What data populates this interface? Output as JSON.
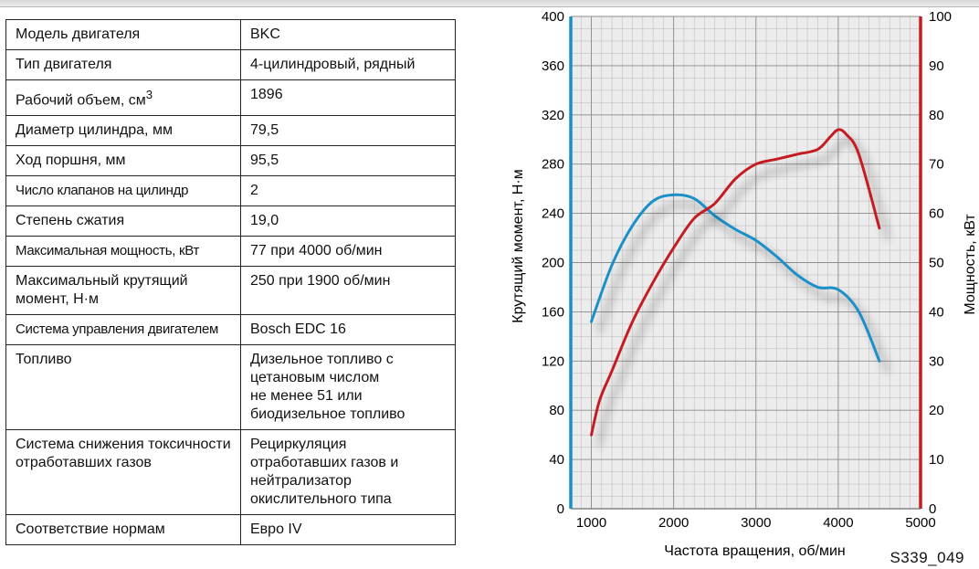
{
  "specs": {
    "rows": [
      {
        "label": "Модель двигателя",
        "value": "BKC"
      },
      {
        "label": "Тип двигателя",
        "value": "4-цилиндровый, рядный"
      },
      {
        "label": "Рабочий объем, см",
        "label_sup": "3",
        "value": "1896"
      },
      {
        "label": "Диаметр цилиндра, мм",
        "value": "79,5"
      },
      {
        "label": "Ход поршня, мм",
        "value": "95,5"
      },
      {
        "label": "Число клапанов на цилиндр",
        "value": "2"
      },
      {
        "label": "Степень сжатия",
        "value": "19,0"
      },
      {
        "label": "Максимальная мощность, кВт",
        "value": "77 при 4000 об/мин"
      },
      {
        "label": "Максимальный крутящий момент, Н·м",
        "value": "250 при 1900 об/мин"
      },
      {
        "label": "Система управления двигателем",
        "value": "Bosch EDC 16"
      },
      {
        "label": "Топливо",
        "value": "Дизельное топливо с\nцетановым числом\nне менее 51 или\nбиодизельное топливо"
      },
      {
        "label": "Система снижения токсичности отработавших газов",
        "value": "Рециркуляция\nотработавших газов и\nнейтрализатор\nокислительного типа"
      },
      {
        "label": "Соответствие нормам",
        "value": "Евро IV"
      }
    ]
  },
  "chart_data": {
    "type": "line",
    "xlabel": "Частота вращения, об/мин",
    "ylabel_left": "Крутящий момент, Н·м",
    "ylabel_right": "Мощность, кВт",
    "x_ticks": [
      1000,
      2000,
      3000,
      4000,
      5000
    ],
    "y_left_ticks": [
      0,
      40,
      80,
      120,
      160,
      200,
      240,
      280,
      320,
      360,
      400
    ],
    "y_right_ticks": [
      0,
      10,
      20,
      30,
      40,
      50,
      60,
      70,
      80,
      90,
      100
    ],
    "xlim": [
      750,
      5000
    ],
    "ylim_left": [
      0,
      400
    ],
    "ylim_right": [
      0,
      100
    ],
    "grid": true,
    "series": [
      {
        "axis": "left",
        "color": "#1a8fc9",
        "x": [
          1000,
          1250,
          1500,
          1750,
          2000,
          2250,
          2500,
          2750,
          3000,
          3250,
          3500,
          3750,
          4000,
          4250,
          4500
        ],
        "values": [
          152,
          198,
          230,
          250,
          255,
          252,
          238,
          227,
          218,
          205,
          190,
          180,
          178,
          160,
          120
        ]
      },
      {
        "axis": "right",
        "color": "#c41e24",
        "x": [
          1000,
          1100,
          1250,
          1500,
          1750,
          2000,
          2250,
          2500,
          2750,
          3000,
          3250,
          3500,
          3750,
          3900,
          4000,
          4100,
          4250,
          4500
        ],
        "values": [
          15,
          22,
          28,
          38,
          46,
          53,
          59,
          62,
          67,
          70,
          71,
          72,
          73,
          75.5,
          77,
          76,
          72,
          57
        ]
      }
    ],
    "colors": {
      "left_axis": "#1a8fc9",
      "right_axis": "#c41e24",
      "plot_bg": "#ececec",
      "grid_major": "#8c8c8c",
      "grid_minor": "#b8b8b8"
    }
  },
  "figure_code": "S339_049"
}
